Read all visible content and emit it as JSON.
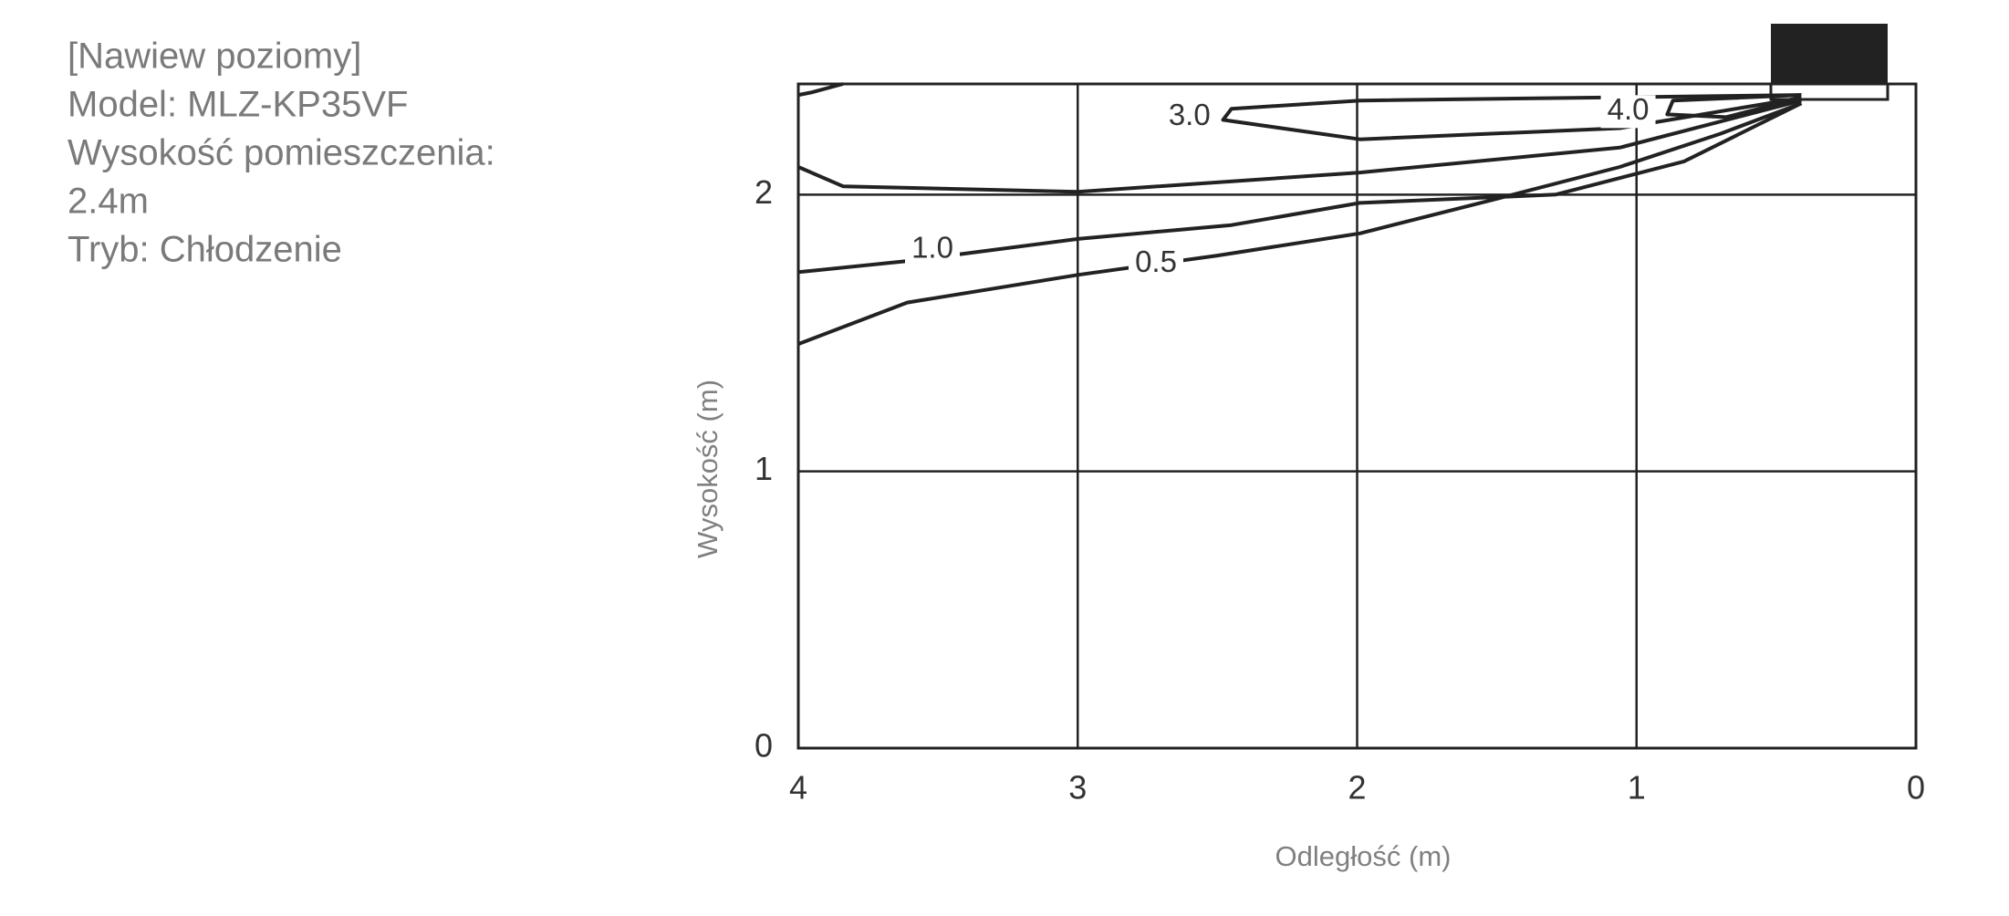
{
  "notes": [
    "[Nawiew poziomy]",
    "Model: MLZ-KP35VF",
    "Wysokość pomieszczenia:",
    "2.4m",
    "Tryb: Chłodzenie"
  ],
  "chart_data": {
    "type": "contour",
    "x_label": "Odległość (m)",
    "y_label": "Wysokość (m)",
    "xlim": [
      4,
      0
    ],
    "ylim": [
      0,
      2.4
    ],
    "xticks": [
      4,
      3,
      2,
      1,
      0
    ],
    "yticks": [
      0,
      1,
      2
    ],
    "grid": true,
    "series": [
      {
        "name": "0.5",
        "color": "#222222",
        "label_x": 2.72,
        "label_y": 1.75,
        "x": [
          4,
          3.61,
          3.0,
          2.5,
          1.99,
          1.52,
          1.06,
          0.7,
          0.41
        ],
        "values": [
          1.46,
          1.61,
          1.71,
          1.78,
          1.86,
          1.98,
          2.1,
          2.22,
          2.33
        ]
      },
      {
        "name": "1.0",
        "color": "#222222",
        "label_x": 3.52,
        "label_y": 1.8,
        "x": [
          4,
          3.61,
          3.0,
          2.45,
          1.99,
          1.29,
          0.83,
          0.41
        ],
        "values": [
          1.72,
          1.76,
          1.84,
          1.89,
          1.97,
          2.0,
          2.12,
          2.33
        ]
      },
      {
        "color": "#222222",
        "x": [
          3.84,
          3.95,
          4,
          null,
          4,
          3.84,
          3.0,
          1.99,
          1.06,
          0.41
        ],
        "values": [
          2.4,
          2.37,
          2.36,
          null,
          2.1,
          2.03,
          2.01,
          2.08,
          2.17,
          2.34
        ]
      },
      {
        "name": "3.0",
        "color": "#222222",
        "label_x": 2.6,
        "label_y": 2.28,
        "x": [
          0.41,
          1.99,
          2.45,
          2.48,
          1.99,
          1.06,
          0.41
        ],
        "values": [
          2.36,
          2.34,
          2.31,
          2.27,
          2.2,
          2.24,
          2.35
        ]
      },
      {
        "name": "4.0",
        "color": "#222222",
        "label_x": 1.03,
        "label_y": 2.3,
        "x": [
          0.41,
          0.87,
          0.89,
          0.68,
          0.41
        ],
        "values": [
          2.36,
          2.34,
          2.29,
          2.28,
          2.35
        ]
      }
    ]
  }
}
